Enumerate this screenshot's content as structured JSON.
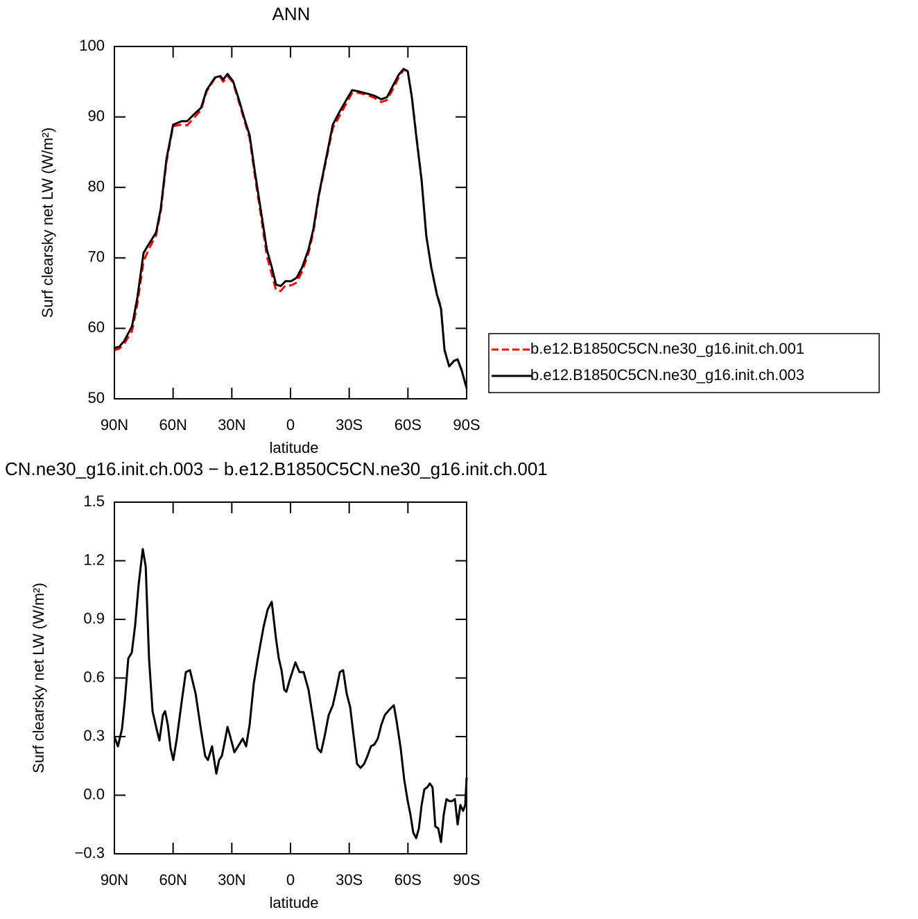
{
  "chart_data": [
    {
      "type": "line",
      "title": "ANN",
      "xlabel": "latitude",
      "ylabel": "Surf clearsky net LW (W/m²)",
      "x": [
        90,
        87.5,
        85,
        81,
        78.3,
        75.1,
        72.3,
        68.7,
        66.3,
        63.4,
        60,
        55.6,
        52.8,
        49.2,
        45.7,
        42.9,
        38.6,
        35.8,
        34.4,
        32.2,
        29.4,
        26.2,
        23.7,
        20.9,
        18.1,
        15.3,
        12.1,
        9.6,
        7.4,
        5,
        2.5,
        -0.4,
        -3.2,
        -6,
        -9.2,
        -11.7,
        -14.5,
        -18.1,
        -21.6,
        -25.2,
        -28.7,
        -31.5,
        -35.1,
        -39.3,
        -42.9,
        -46.4,
        -49.3,
        -52.1,
        -55.3,
        -57.8,
        -59.9,
        -62,
        -64.2,
        -67,
        -69.4,
        -71.9,
        -74.8,
        -76.9,
        -78.7,
        -81.1,
        -83.6,
        -85.4,
        -87.5,
        -90
      ],
      "series": [
        {
          "name": "b.e12.B1850C5CN.ne30_g16.init.ch.001",
          "color": "#ff0000",
          "dash": true,
          "values": [
            56.9,
            57.1,
            57.8,
            59.6,
            63.4,
            69.5,
            71.3,
            73.2,
            76.6,
            83.6,
            88.7,
            88.9,
            88.8,
            89.9,
            91.0,
            93.6,
            95.5,
            95.6,
            95.0,
            95.8,
            94.9,
            92.0,
            89.6,
            87.0,
            81.4,
            76.3,
            70.3,
            67.7,
            65.4,
            65.3,
            66.1,
            66.1,
            66.5,
            68.1,
            70.7,
            73.7,
            78.8,
            83.7,
            88.4,
            90.2,
            92.0,
            93.4,
            93.4,
            93.1,
            92.7,
            92.1,
            92.4,
            93.8,
            95.6,
            96.7,
            96.5,
            92.9,
            87.6,
            81.0,
            73.1,
            68.7,
            64.9,
            63.0,
            57.0,
            54.6,
            55.4,
            55.6,
            54.1,
            51.4
          ]
        },
        {
          "name": "b.e12.B1850C5CN.ne30_g16.init.ch.003",
          "color": "#000000",
          "dash": false,
          "values": [
            57.2,
            57.4,
            58.2,
            60.3,
            64.3,
            70.7,
            72,
            73.6,
            77,
            84,
            88.9,
            89.4,
            89.4,
            90.4,
            91.3,
            93.8,
            95.6,
            95.8,
            95.3,
            96.1,
            95.1,
            92.3,
            89.9,
            87.4,
            82,
            77,
            71.2,
            68.7,
            66.2,
            66,
            66.7,
            66.7,
            67.2,
            68.7,
            71.2,
            74.1,
            79,
            84,
            88.9,
            90.8,
            92.5,
            93.8,
            93.6,
            93.3,
            93,
            92.5,
            92.8,
            94.3,
            96,
            96.8,
            96.5,
            92.8,
            87.4,
            81,
            73.1,
            68.7,
            64.8,
            62.8,
            56.9,
            54.6,
            55.4,
            55.6,
            54,
            51.5
          ]
        }
      ],
      "xlim": [
        90,
        -90
      ],
      "xticks": [
        {
          "value": 90,
          "label": "90N"
        },
        {
          "value": 60,
          "label": "60N"
        },
        {
          "value": 30,
          "label": "30N"
        },
        0,
        {
          "value": -30,
          "label": "30S"
        },
        {
          "value": -60,
          "label": "60S"
        },
        {
          "value": -90,
          "label": "90S"
        }
      ],
      "ylim": [
        50,
        100
      ],
      "yticks": [
        50,
        60,
        70,
        80,
        90,
        100
      ],
      "legend": "right"
    },
    {
      "type": "line",
      "title": "CN.ne30_g16.init.ch.003 − b.e12.B1850C5CN.ne30_g16.init.ch.001",
      "xlabel": "latitude",
      "ylabel": "Surf clearsky net LW (W/m²)",
      "x": [
        90,
        88.2,
        86.1,
        84.7,
        82.9,
        81.1,
        79.4,
        77.6,
        75.5,
        74.0,
        72.3,
        70.5,
        68.7,
        67.0,
        65.2,
        64.1,
        62.7,
        61.3,
        59.9,
        58.1,
        55.6,
        53.5,
        51.4,
        48.5,
        45.7,
        43.6,
        42.2,
        40.1,
        37.9,
        36.5,
        35.1,
        33.3,
        32.2,
        30.8,
        28.7,
        26.2,
        24.4,
        22.7,
        20.9,
        18.8,
        16.7,
        13.8,
        11.7,
        9.6,
        7.4,
        6.0,
        4.6,
        3.2,
        2.1,
        0.4,
        -2.5,
        -4.6,
        -6.7,
        -9.2,
        -11.7,
        -13.8,
        -15.6,
        -17.4,
        -19.5,
        -21.6,
        -23.4,
        -25.2,
        -26.9,
        -28.7,
        -30.5,
        -32.3,
        -34.0,
        -35.8,
        -37.6,
        -39.3,
        -41.1,
        -42.9,
        -44.6,
        -46.4,
        -48.2,
        -50.7,
        -52.8,
        -54.2,
        -56.3,
        -58.1,
        -59.9,
        -61.3,
        -62.7,
        -64.2,
        -65.6,
        -67.0,
        -68.4,
        -69.8,
        -71.2,
        -72.6,
        -74.0,
        -75.5,
        -76.9,
        -78.3,
        -79.7,
        -81.1,
        -82.6,
        -84.0,
        -85.4,
        -86.8,
        -88.2,
        -89.3,
        -90
      ],
      "series": [
        {
          "color": "#000000",
          "dash": false,
          "values": [
            0.3,
            0.25,
            0.34,
            0.48,
            0.7,
            0.73,
            0.87,
            1.08,
            1.26,
            1.17,
            0.7,
            0.43,
            0.35,
            0.28,
            0.41,
            0.43,
            0.36,
            0.24,
            0.18,
            0.29,
            0.48,
            0.63,
            0.64,
            0.52,
            0.33,
            0.2,
            0.18,
            0.25,
            0.11,
            0.18,
            0.2,
            0.29,
            0.35,
            0.3,
            0.22,
            0.26,
            0.29,
            0.25,
            0.36,
            0.57,
            0.7,
            0.86,
            0.95,
            0.99,
            0.8,
            0.7,
            0.64,
            0.54,
            0.53,
            0.59,
            0.68,
            0.63,
            0.63,
            0.54,
            0.38,
            0.24,
            0.22,
            0.3,
            0.41,
            0.46,
            0.54,
            0.63,
            0.64,
            0.52,
            0.45,
            0.3,
            0.16,
            0.14,
            0.16,
            0.2,
            0.25,
            0.26,
            0.29,
            0.36,
            0.41,
            0.44,
            0.46,
            0.38,
            0.24,
            0.08,
            -0.03,
            -0.1,
            -0.19,
            -0.22,
            -0.17,
            -0.05,
            0.03,
            0.04,
            0.06,
            0.04,
            -0.16,
            -0.17,
            -0.24,
            -0.1,
            -0.02,
            -0.03,
            -0.03,
            -0.02,
            -0.15,
            -0.05,
            -0.08,
            -0.05,
            0.09
          ]
        }
      ],
      "xlim": [
        90,
        -90
      ],
      "xticks": [
        {
          "value": 90,
          "label": "90N"
        },
        {
          "value": 60,
          "label": "60N"
        },
        {
          "value": 30,
          "label": "30N"
        },
        0,
        {
          "value": -30,
          "label": "30S"
        },
        {
          "value": -60,
          "label": "60S"
        },
        {
          "value": -90,
          "label": "90S"
        }
      ],
      "ylim": [
        -0.3,
        1.5
      ],
      "yticks": [
        {
          "value": -0.3,
          "label": "−0.3"
        },
        {
          "value": 0,
          "label": "0.0"
        },
        0.3,
        0.6,
        0.9,
        1.2,
        1.5
      ]
    }
  ]
}
